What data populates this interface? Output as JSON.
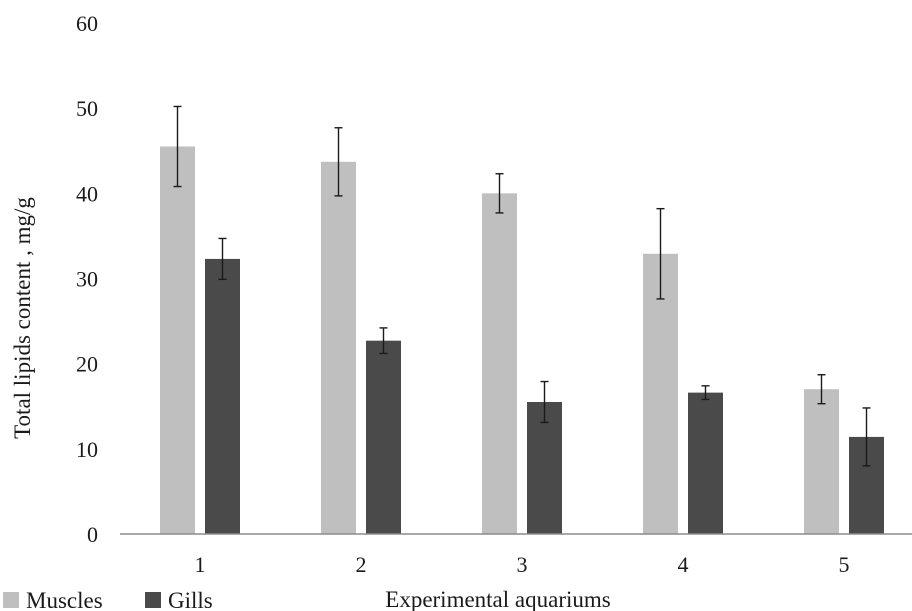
{
  "chart_data": {
    "type": "bar",
    "title": "",
    "xlabel": "Experimental aquariums",
    "ylabel": "Total lipids content , mg/g",
    "categories": [
      "1",
      "2",
      "3",
      "4",
      "5"
    ],
    "ylim": [
      0,
      60
    ],
    "yticks": [
      "0",
      "10",
      "20",
      "30",
      "40",
      "50",
      "60"
    ],
    "grid": false,
    "legend_position": "bottom-left",
    "series": [
      {
        "name": "Muscles",
        "color": "#bfbfbf",
        "values": [
          45.5,
          43.7,
          40.0,
          32.9,
          17.0
        ],
        "errors": [
          4.7,
          4.0,
          2.3,
          5.3,
          1.7
        ]
      },
      {
        "name": "Gills",
        "color": "#4a4a4a",
        "values": [
          32.3,
          22.7,
          15.5,
          16.6,
          11.4
        ],
        "errors": [
          2.4,
          1.5,
          2.4,
          0.8,
          3.4
        ]
      }
    ]
  }
}
